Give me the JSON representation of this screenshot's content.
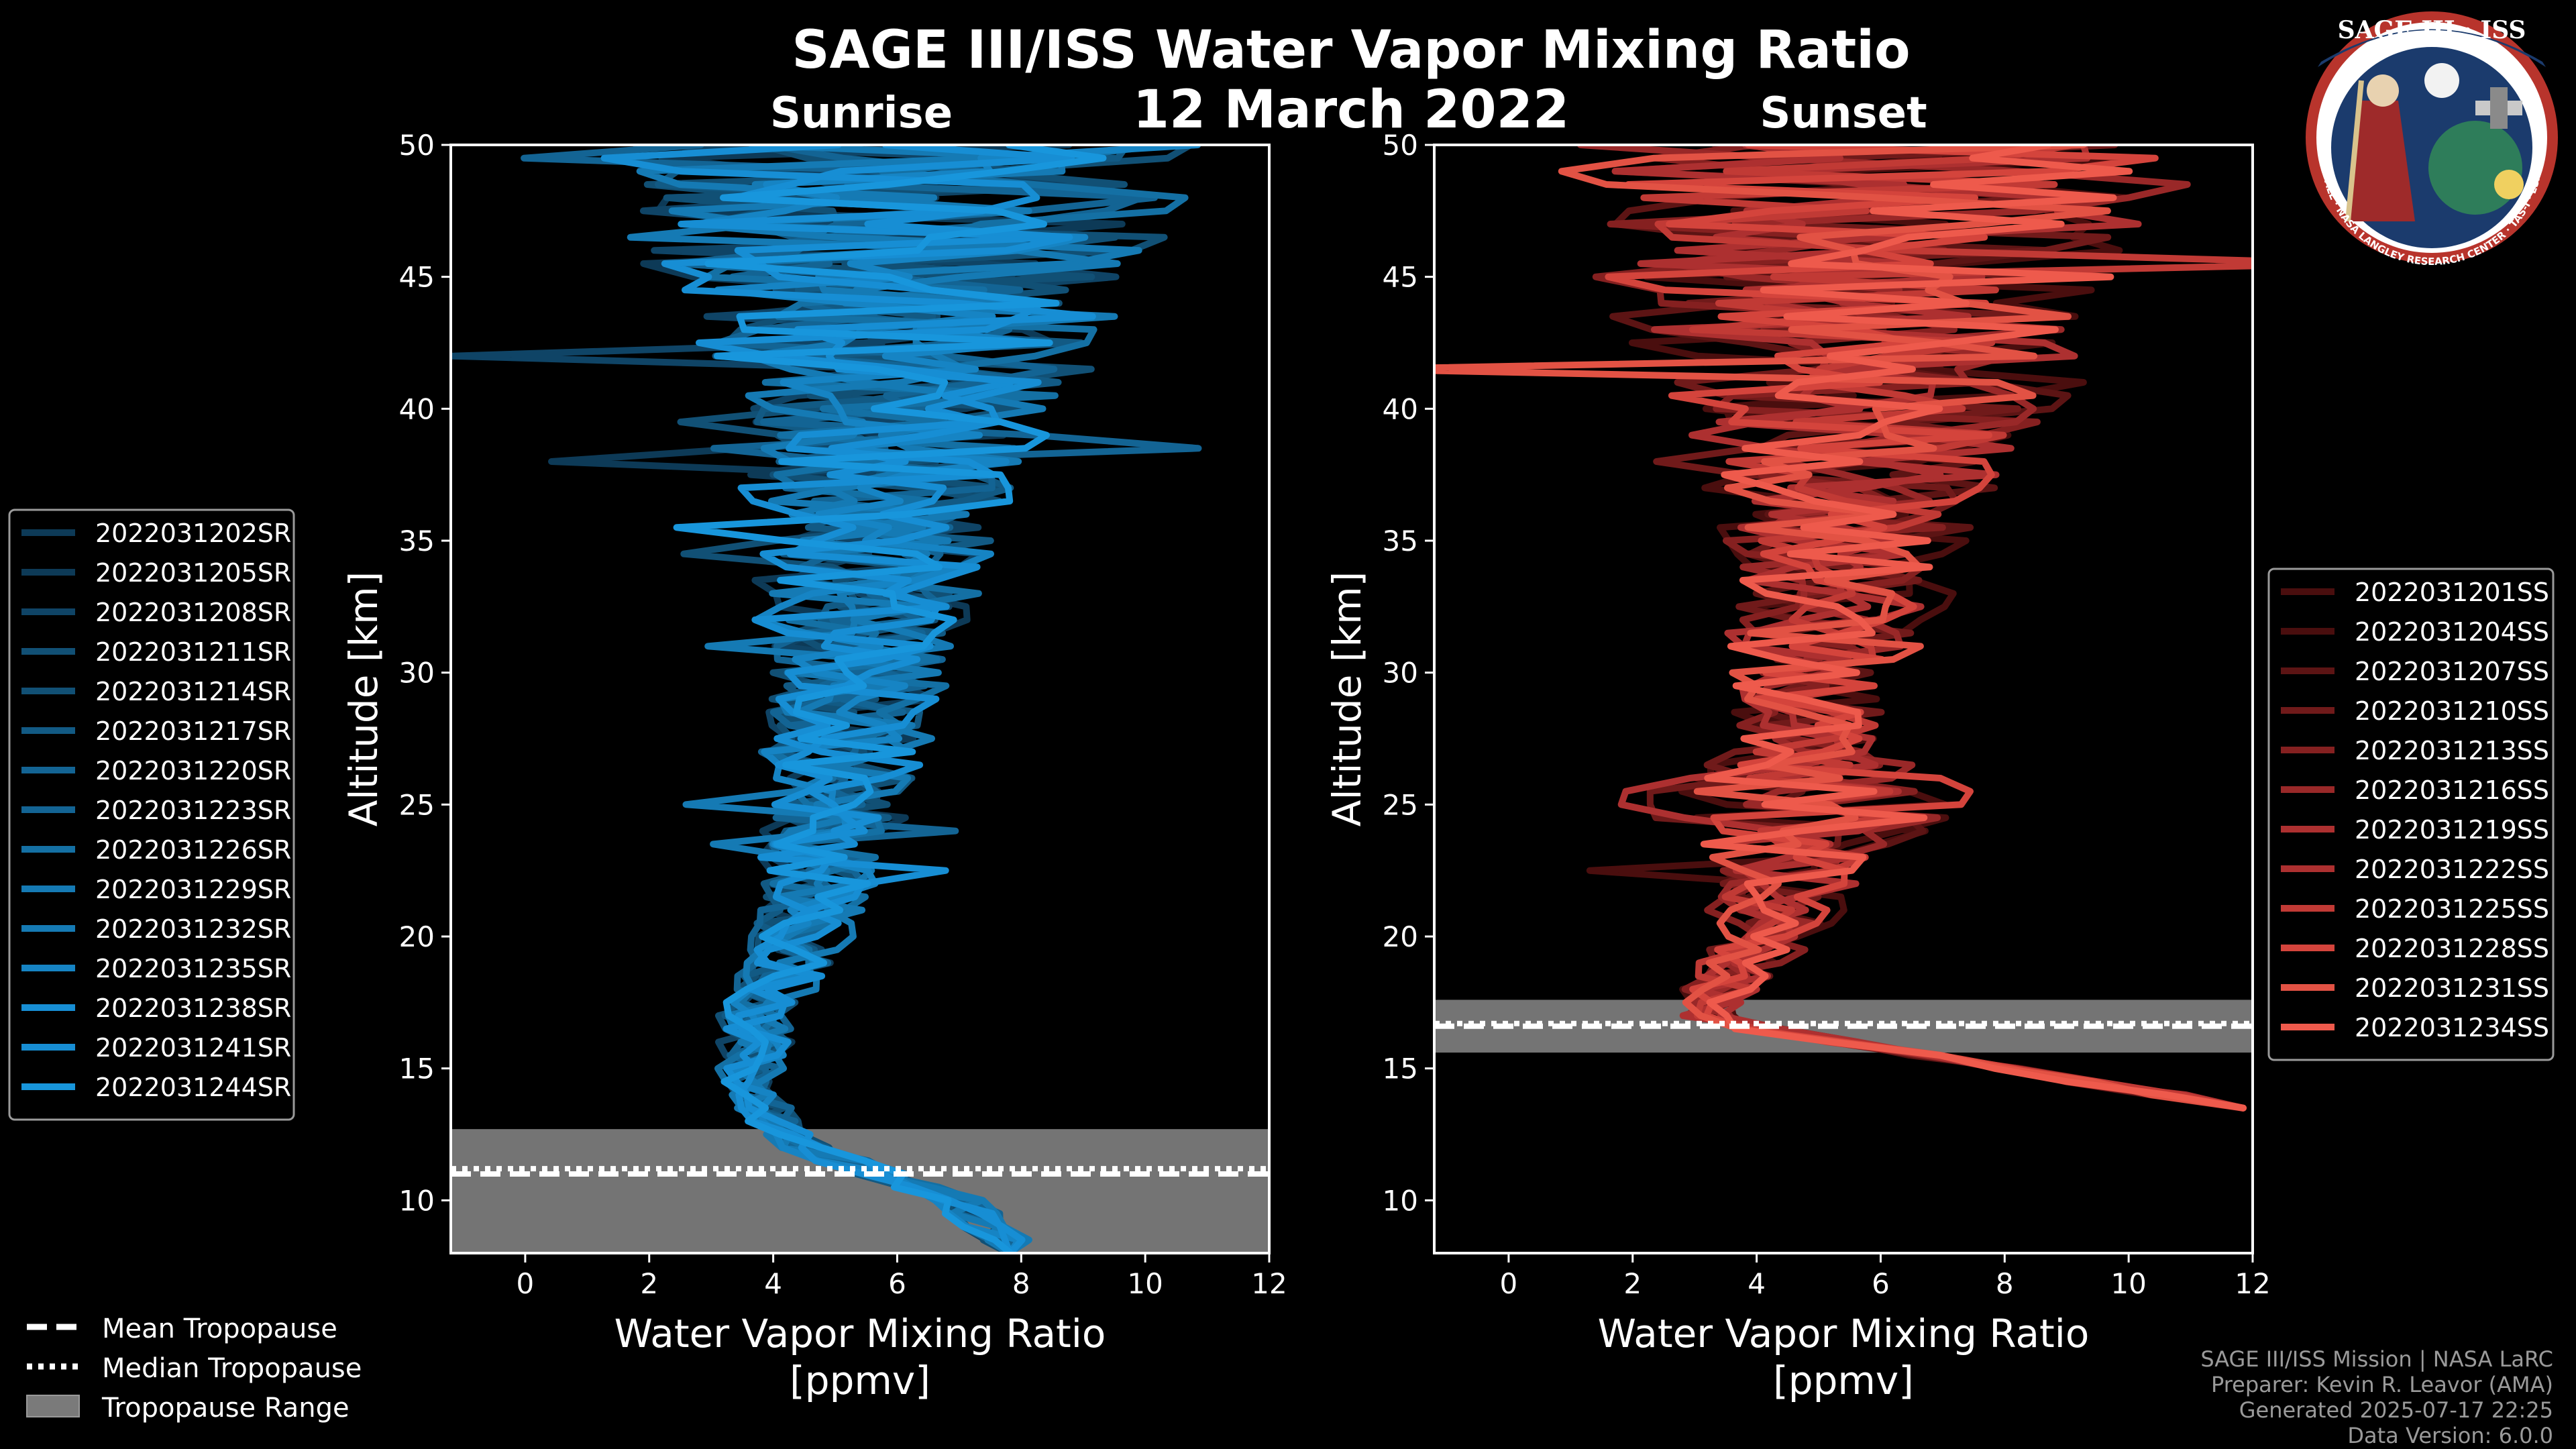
{
  "header": {
    "title": "SAGE III/ISS Water Vapor Mixing Ratio",
    "date": "12 March 2022"
  },
  "logo": {
    "title": "SAGE III · ISS",
    "ring_text": "BALL · NASA LANGLEY RESEARCH CENTER · TAS-I · ESA"
  },
  "colors": {
    "sunrise": [
      "#0d3a57",
      "#0f4466",
      "#115075",
      "#125a84",
      "#136494",
      "#1470a4",
      "#157ab4",
      "#1684c4",
      "#178ed4",
      "#1896dc"
    ],
    "sunset": [
      "#4a0e0e",
      "#5c1414",
      "#701a1a",
      "#852020",
      "#992828",
      "#ad3030",
      "#c13a35",
      "#d4443c",
      "#e25244",
      "#ee5a4c"
    ],
    "trop_band": "#7a7a7a"
  },
  "legend": {
    "tropopause": {
      "mean": "Mean Tropopause",
      "median": "Median Tropopause",
      "range": "Tropopause Range"
    }
  },
  "credits": {
    "line1": "SAGE III/ISS Mission | NASA LaRC",
    "line2": "Preparer: Kevin R. Leavor (AMA)",
    "line3": "Generated 2025-07-17 22:25",
    "line4": "Data Version: 6.0.0"
  },
  "chart_data": [
    {
      "type": "line",
      "panel": "sunrise",
      "subtitle": "Sunrise",
      "xlabel": "Water Vapor Mixing Ratio\n[ppmv]",
      "ylabel": "Altitude [km]",
      "xlim": [
        -1.2,
        12
      ],
      "ylim": [
        8,
        50
      ],
      "xticks": [
        0,
        2,
        4,
        6,
        8,
        10,
        12
      ],
      "yticks": [
        10,
        15,
        20,
        25,
        30,
        35,
        40,
        45,
        50
      ],
      "tropopause": {
        "mean": 11.0,
        "median": 11.2,
        "range": [
          7.8,
          12.7
        ]
      },
      "series": [
        {
          "name": "2022031202SR",
          "seed": 11
        },
        {
          "name": "2022031205SR",
          "seed": 23
        },
        {
          "name": "2022031208SR",
          "seed": 37
        },
        {
          "name": "2022031211SR",
          "seed": 41
        },
        {
          "name": "2022031214SR",
          "seed": 53
        },
        {
          "name": "2022031217SR",
          "seed": 67
        },
        {
          "name": "2022031220SR",
          "seed": 71
        },
        {
          "name": "2022031223SR",
          "seed": 83
        },
        {
          "name": "2022031226SR",
          "seed": 97
        },
        {
          "name": "2022031229SR",
          "seed": 101
        },
        {
          "name": "2022031232SR",
          "seed": 113
        },
        {
          "name": "2022031235SR",
          "seed": 127
        },
        {
          "name": "2022031238SR",
          "seed": 131
        },
        {
          "name": "2022031241SR",
          "seed": 149
        },
        {
          "name": "2022031244SR",
          "seed": 157
        }
      ],
      "profile_shape": {
        "center": [
          [
            8,
            8
          ],
          [
            10,
            7
          ],
          [
            12,
            4.5
          ],
          [
            14,
            3.6
          ],
          [
            17,
            3.8
          ],
          [
            20,
            4.5
          ],
          [
            25,
            5.0
          ],
          [
            30,
            5.4
          ],
          [
            35,
            5.6
          ],
          [
            40,
            6.0
          ],
          [
            45,
            6.0
          ],
          [
            50,
            6.0
          ]
        ],
        "noise": [
          [
            8,
            0.5
          ],
          [
            12,
            0.5
          ],
          [
            15,
            0.6
          ],
          [
            20,
            0.9
          ],
          [
            25,
            1.3
          ],
          [
            30,
            1.7
          ],
          [
            35,
            2.2
          ],
          [
            40,
            3.2
          ],
          [
            45,
            4.5
          ],
          [
            50,
            5.5
          ]
        ]
      }
    },
    {
      "type": "line",
      "panel": "sunset",
      "subtitle": "Sunset",
      "xlabel": "Water Vapor Mixing Ratio\n[ppmv]",
      "ylabel": "Altitude [km]",
      "xlim": [
        -1.2,
        12
      ],
      "ylim": [
        8,
        50
      ],
      "xticks": [
        0,
        2,
        4,
        6,
        8,
        10,
        12
      ],
      "yticks": [
        10,
        15,
        20,
        25,
        30,
        35,
        40,
        45,
        50
      ],
      "tropopause": {
        "mean": 16.6,
        "median": 16.7,
        "range": [
          15.6,
          17.6
        ]
      },
      "series": [
        {
          "name": "2022031201SS",
          "seed": 13
        },
        {
          "name": "2022031204SS",
          "seed": 29
        },
        {
          "name": "2022031207SS",
          "seed": 31
        },
        {
          "name": "2022031210SS",
          "seed": 43
        },
        {
          "name": "2022031213SS",
          "seed": 59
        },
        {
          "name": "2022031216SS",
          "seed": 61
        },
        {
          "name": "2022031219SS",
          "seed": 73
        },
        {
          "name": "2022031222SS",
          "seed": 79
        },
        {
          "name": "2022031225SS",
          "seed": 89
        },
        {
          "name": "2022031228SS",
          "seed": 103
        },
        {
          "name": "2022031231SS",
          "seed": 107
        },
        {
          "name": "2022031234SS",
          "seed": 109
        }
      ],
      "profile_shape": {
        "center": [
          [
            13.5,
            12
          ],
          [
            15,
            8
          ],
          [
            16.5,
            4
          ],
          [
            17,
            3.2
          ],
          [
            18,
            3.4
          ],
          [
            20,
            4.2
          ],
          [
            25,
            4.6
          ],
          [
            30,
            5.0
          ],
          [
            35,
            5.4
          ],
          [
            40,
            5.8
          ],
          [
            45,
            6.0
          ],
          [
            50,
            6.0
          ]
        ],
        "noise": [
          [
            13.5,
            0.4
          ],
          [
            16,
            0.4
          ],
          [
            18,
            0.7
          ],
          [
            20,
            1.0
          ],
          [
            23,
            1.6
          ],
          [
            25,
            3.5
          ],
          [
            27,
            1.4
          ],
          [
            30,
            1.6
          ],
          [
            35,
            2.2
          ],
          [
            40,
            3.5
          ],
          [
            45,
            4.8
          ],
          [
            50,
            5.5
          ]
        ]
      }
    }
  ]
}
